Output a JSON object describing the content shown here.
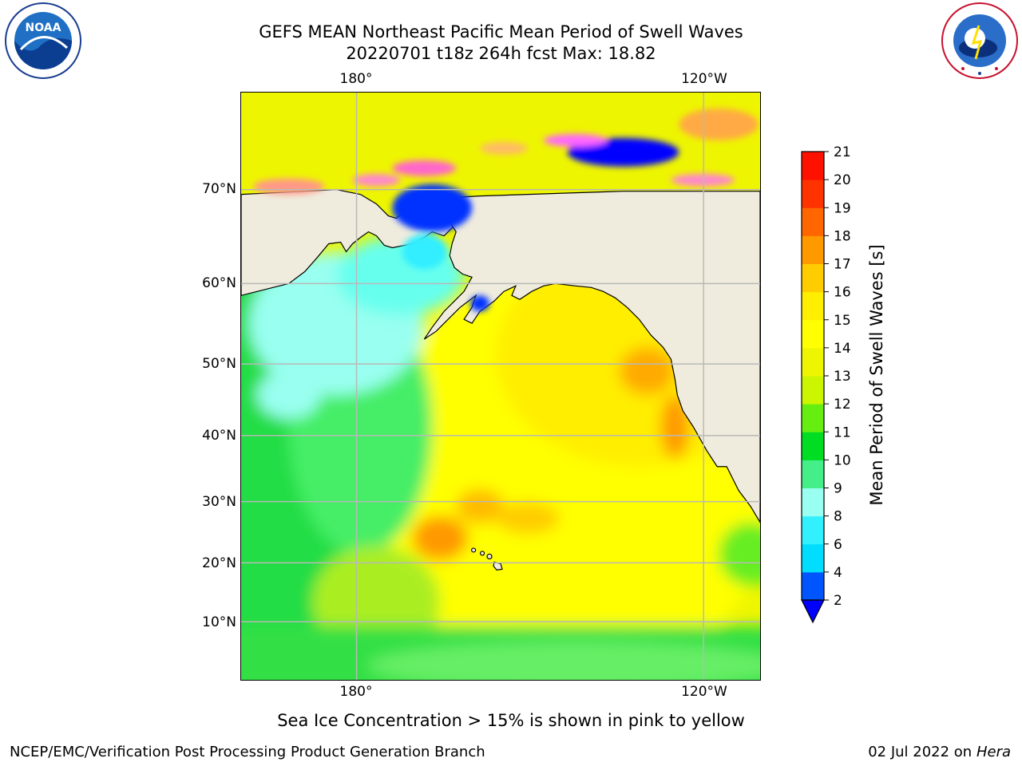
{
  "header": {
    "title_line1": "GEFS MEAN Northeast Pacific Mean Period of Swell Waves",
    "title_line2": "20220701 t18z 264h fcst   Max: 18.82"
  },
  "logos": {
    "noaa": {
      "icon": "noaa-logo",
      "text": "NOAA",
      "ring_text": "NATIONAL OCEANIC AND ATMOSPHERIC ADMINISTRATION · U.S. DEPARTMENT OF COMMERCE"
    },
    "nws": {
      "icon": "nws-logo",
      "ring_text": "NATIONAL WEATHER SERVICE"
    }
  },
  "map": {
    "top_lon_labels": [
      "180°",
      "120°W"
    ],
    "bottom_lon_labels": [
      "180°",
      "120°W"
    ],
    "lat_labels": [
      "70°N",
      "60°N",
      "50°N",
      "40°N",
      "30°N",
      "20°N",
      "10°N"
    ],
    "land_color": "#efecdd",
    "grid_color": "#b8b8b8",
    "hawaii": "island markers"
  },
  "colorbar": {
    "label": "Mean Period of Swell Waves [s]",
    "ticks": [
      "2",
      "4",
      "6",
      "8",
      "9",
      "10",
      "11",
      "12",
      "13",
      "14",
      "15",
      "16",
      "17",
      "18",
      "19",
      "20",
      "21"
    ],
    "colors": [
      "#0055ff",
      "#00ddff",
      "#33f0ff",
      "#99fff0",
      "#44ee88",
      "#00dd22",
      "#66ee11",
      "#ccf500",
      "#eef500",
      "#ffff00",
      "#ffee00",
      "#ffcc00",
      "#ff9900",
      "#ff6600",
      "#ff3300",
      "#ff1100"
    ],
    "underflow_color": "#0000ff"
  },
  "footnote": "Sea Ice Concentration > 15% is shown in pink to yellow",
  "footer": {
    "left": "NCEP/EMC/Verification Post Processing Product Generation Branch",
    "date": "02 Jul 2022 on",
    "host": "Hera"
  }
}
